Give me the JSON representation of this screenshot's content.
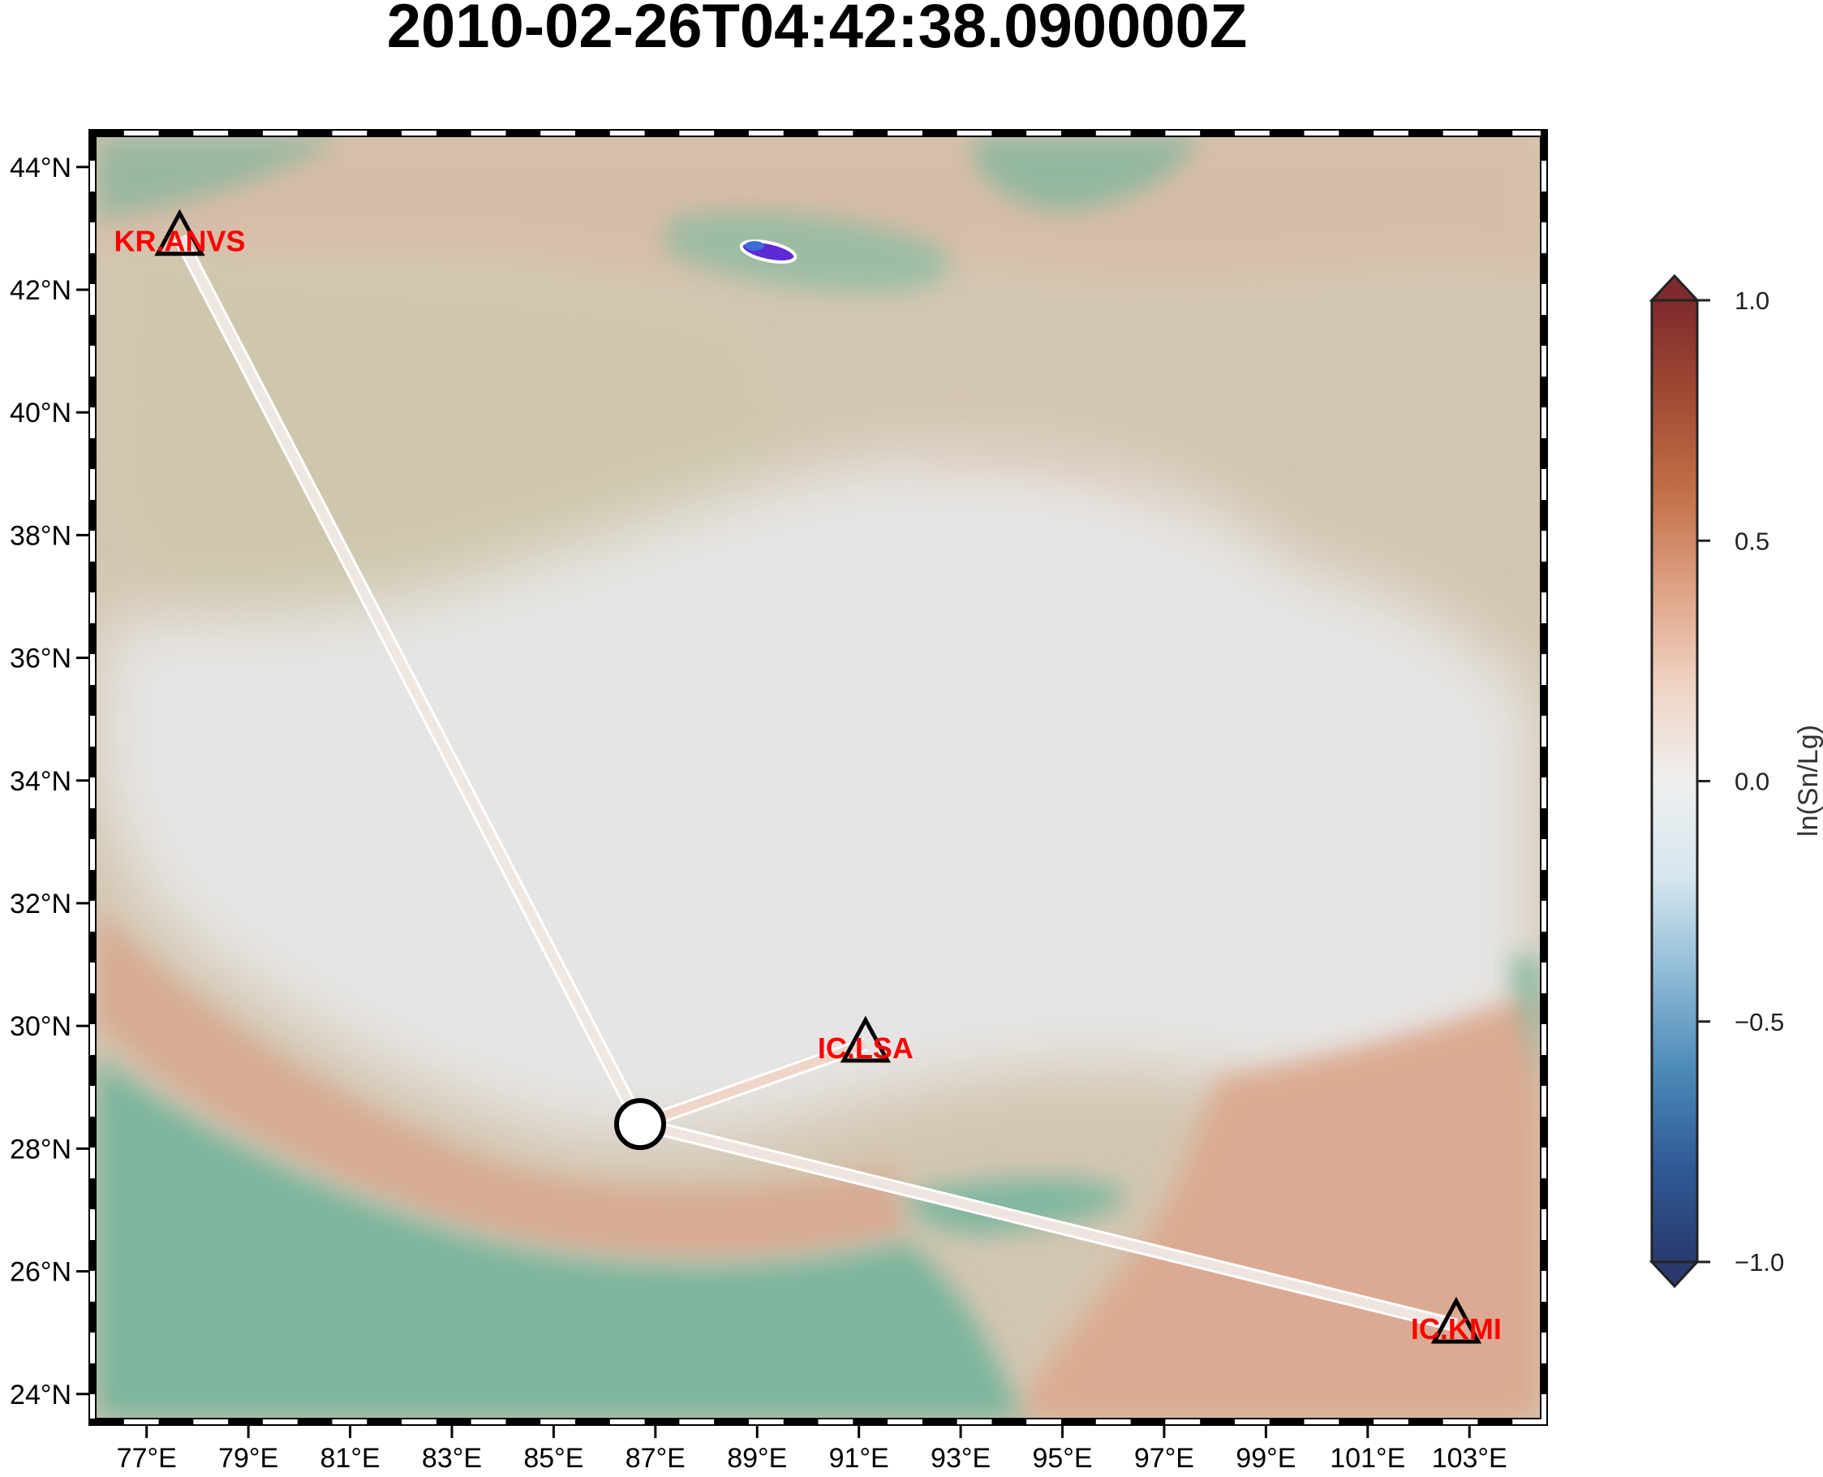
{
  "title": "2010-02-26T04:42:38.090000Z",
  "lon_labels": [
    "77°E",
    "79°E",
    "81°E",
    "83°E",
    "85°E",
    "87°E",
    "89°E",
    "91°E",
    "93°E",
    "95°E",
    "97°E",
    "99°E",
    "101°E",
    "103°E"
  ],
  "lat_labels": [
    "24°N",
    "26°N",
    "28°N",
    "30°N",
    "32°N",
    "34°N",
    "36°N",
    "38°N",
    "40°N",
    "42°N",
    "44°N"
  ],
  "lon_values": [
    77,
    79,
    81,
    83,
    85,
    87,
    89,
    91,
    93,
    95,
    97,
    99,
    101,
    103
  ],
  "lat_values": [
    24,
    26,
    28,
    30,
    32,
    34,
    36,
    38,
    40,
    42,
    44
  ],
  "extent": {
    "lon_min": 76.0,
    "lon_max": 104.4,
    "lat_min": 23.6,
    "lat_max": 44.5
  },
  "event": {
    "lon": 86.7,
    "lat": 28.4
  },
  "stations": [
    {
      "code": "KR.ANVS",
      "lon": 77.65,
      "lat": 42.85,
      "value": 0.06
    },
    {
      "code": "IC.LSA",
      "lon": 91.13,
      "lat": 29.7,
      "value": 0.18
    },
    {
      "code": "IC.KMI",
      "lon": 102.74,
      "lat": 25.12,
      "value": 0.07
    }
  ],
  "colorbar": {
    "label": "ln(Sn/Lg)",
    "min": -1.0,
    "max": 1.0,
    "ticks": [
      1.0,
      0.5,
      0.0,
      -0.5,
      -1.0
    ],
    "tick_labels": [
      "1.0",
      "0.5",
      "0.0",
      "−0.5",
      "−1.0"
    ],
    "colors": [
      "#2a3a6e",
      "#2f5a96",
      "#4c8ab8",
      "#8fbbd6",
      "#d6e6ef",
      "#efefef",
      "#efd3c4",
      "#dea285",
      "#c27048",
      "#a14a33",
      "#7e2a2e"
    ]
  },
  "colors": {
    "station_label": "#ff0000",
    "lowland": "#7fb39c",
    "basin": "#cdc9b0",
    "plateau": "#e6e6e6",
    "foothills": "#dfae95"
  }
}
